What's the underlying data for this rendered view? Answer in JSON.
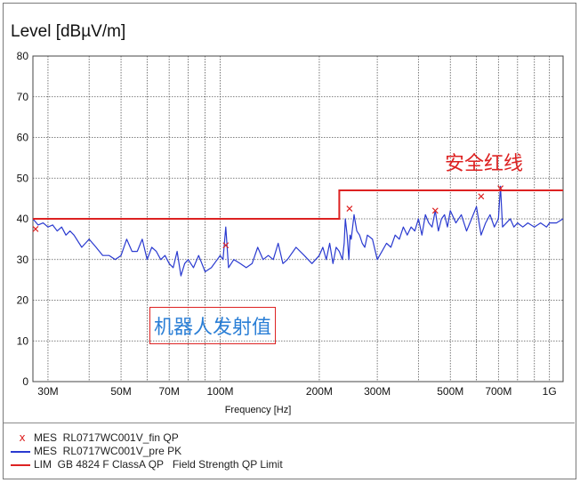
{
  "chart_data": {
    "type": "line",
    "ylabel": "Level [dBµV/m]",
    "xlabel": "Frequency [Hz]",
    "x_scale": "log",
    "xlim": [
      27,
      1100
    ],
    "ylim": [
      0,
      80
    ],
    "yticks": [
      "0",
      "10",
      "20",
      "30",
      "40",
      "50",
      "60",
      "70",
      "80"
    ],
    "xticks": [
      {
        "v": 30,
        "label": "30M"
      },
      {
        "v": 50,
        "label": "50M"
      },
      {
        "v": 70,
        "label": "70M"
      },
      {
        "v": 100,
        "label": "100M"
      },
      {
        "v": 200,
        "label": "200M"
      },
      {
        "v": 300,
        "label": "300M"
      },
      {
        "v": 500,
        "label": "500M"
      },
      {
        "v": 700,
        "label": "700M"
      },
      {
        "v": 1000,
        "label": "1G"
      }
    ],
    "grid": true,
    "legend_position": "bottom",
    "series": [
      {
        "name": "MES  RL0717WC001V_fin QP",
        "kind": "markers",
        "color": "#dd2222",
        "x": [
          27.5,
          104,
          247,
          450,
          620,
          710
        ],
        "y": [
          37.5,
          33.5,
          42.5,
          42,
          45.5,
          47.5
        ]
      },
      {
        "name": "MES  RL0717WC001V_pre PK",
        "kind": "line",
        "color": "#2a3ad0",
        "x": [
          27,
          28,
          29,
          30,
          31,
          32,
          33,
          34,
          35,
          36,
          38,
          40,
          42,
          44,
          46,
          48,
          50,
          52,
          54,
          56,
          58,
          60,
          62,
          64,
          66,
          68,
          70,
          72,
          74,
          76,
          78,
          80,
          83,
          86,
          90,
          94,
          98,
          100,
          102,
          104,
          106,
          110,
          115,
          120,
          125,
          130,
          135,
          140,
          145,
          150,
          155,
          160,
          170,
          180,
          190,
          200,
          205,
          210,
          215,
          220,
          225,
          230,
          235,
          238,
          240,
          243,
          246,
          248,
          250,
          255,
          260,
          265,
          270,
          275,
          280,
          290,
          300,
          310,
          320,
          330,
          340,
          350,
          360,
          370,
          380,
          390,
          400,
          410,
          420,
          430,
          440,
          450,
          460,
          470,
          480,
          490,
          500,
          520,
          540,
          560,
          580,
          600,
          620,
          640,
          660,
          680,
          700,
          710,
          720,
          740,
          760,
          780,
          800,
          830,
          860,
          900,
          940,
          980,
          1000,
          1050,
          1100
        ],
        "y": [
          40,
          38.5,
          39,
          38,
          38.5,
          37,
          38,
          36,
          37,
          36,
          33,
          35,
          33,
          31,
          31,
          30,
          31,
          35,
          32,
          32,
          35,
          30,
          33,
          32,
          30,
          31,
          29,
          28,
          32,
          26,
          29,
          30,
          28,
          31,
          27,
          28,
          30,
          31,
          30,
          38,
          28,
          30,
          29,
          28,
          29,
          33,
          30,
          31,
          30,
          34,
          29,
          30,
          33,
          31,
          29,
          31,
          33,
          30,
          34,
          29,
          33,
          32,
          30,
          34,
          40,
          36,
          30,
          36,
          35,
          41,
          37,
          36,
          34,
          33,
          36,
          35,
          30,
          32,
          34,
          33,
          36,
          35,
          38,
          36,
          38,
          37,
          40,
          36,
          41,
          39,
          38,
          42,
          37,
          40,
          41,
          38,
          42,
          39,
          41,
          37,
          40,
          43,
          36,
          39,
          41,
          38,
          40,
          48,
          38,
          39,
          40,
          38,
          39,
          38,
          39,
          38,
          39,
          38,
          39,
          39,
          40
        ]
      },
      {
        "name": "LIM  GB 4824 F ClassA QP   Field Strength QP Limit",
        "kind": "step",
        "color": "#dd2222",
        "x": [
          27,
          230,
          230,
          1100
        ],
        "y": [
          40,
          40,
          47,
          47
        ]
      }
    ]
  },
  "annotations": {
    "redline": "安全红线",
    "robot": "机器人发射值"
  },
  "legend": {
    "fin_marker": "x",
    "fin": "MES  RL0717WC001V_fin QP",
    "pre": "MES  RL0717WC001V_pre PK",
    "lim": "LIM  GB 4824 F ClassA QP   Field Strength QP Limit"
  }
}
